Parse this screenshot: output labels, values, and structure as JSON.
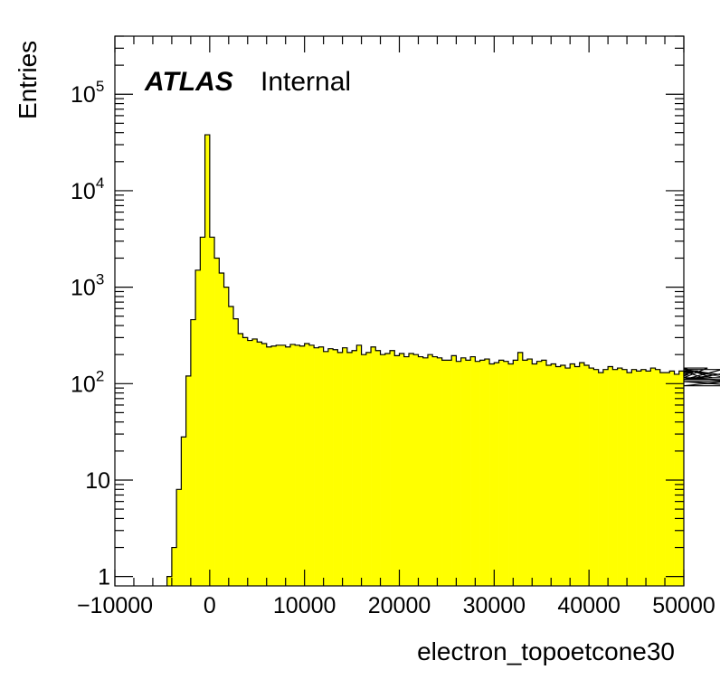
{
  "chart_data": {
    "type": "bar",
    "style": "histogram",
    "xlabel": "electron_topoetcone30",
    "ylabel": "Entries",
    "label_bold": "ATLAS",
    "label_text": "Internal",
    "xlim": [
      -10000,
      50000
    ],
    "ylim": [
      0.8,
      400000
    ],
    "yscale": "log",
    "bin_width": 500,
    "x_start": -4500,
    "fill_color": "#ffff00",
    "line_color": "#000000",
    "x_ticks": [
      {
        "value": -10000,
        "label": "−10000"
      },
      {
        "value": 0,
        "label": "0"
      },
      {
        "value": 10000,
        "label": "10000"
      },
      {
        "value": 20000,
        "label": "20000"
      },
      {
        "value": 30000,
        "label": "30000"
      },
      {
        "value": 40000,
        "label": "40000"
      },
      {
        "value": 50000,
        "label": "50000"
      }
    ],
    "y_ticks": [
      {
        "value": 1,
        "base": "1",
        "exp": ""
      },
      {
        "value": 10,
        "base": "10",
        "exp": ""
      },
      {
        "value": 100,
        "base": "10",
        "exp": "2"
      },
      {
        "value": 1000,
        "base": "10",
        "exp": "3"
      },
      {
        "value": 10000,
        "base": "10",
        "exp": "4"
      },
      {
        "value": 100000,
        "base": "10",
        "exp": "5"
      }
    ],
    "values": [
      1,
      2,
      8,
      28,
      120,
      460,
      1500,
      3300,
      38000,
      3300,
      2000,
      1400,
      1000,
      630,
      470,
      330,
      300,
      280,
      290,
      270,
      260,
      240,
      245,
      250,
      250,
      240,
      255,
      250,
      245,
      260,
      250,
      235,
      240,
      215,
      230,
      225,
      210,
      235,
      210,
      220,
      250,
      200,
      210,
      240,
      220,
      200,
      205,
      220,
      195,
      205,
      190,
      205,
      200,
      190,
      185,
      200,
      190,
      185,
      175,
      175,
      195,
      170,
      185,
      175,
      190,
      170,
      175,
      180,
      160,
      165,
      175,
      170,
      160,
      175,
      210,
      175,
      180,
      160,
      170,
      175,
      155,
      160,
      150,
      155,
      145,
      160,
      150,
      165,
      155,
      145,
      140,
      130,
      140,
      150,
      140,
      145,
      140,
      130,
      140,
      135,
      140,
      135,
      145,
      140,
      130,
      130,
      135,
      125,
      135,
      120,
      125,
      130,
      135,
      115,
      145,
      115,
      110,
      140,
      115,
      115,
      105,
      95,
      110,
      140,
      110
    ]
  }
}
